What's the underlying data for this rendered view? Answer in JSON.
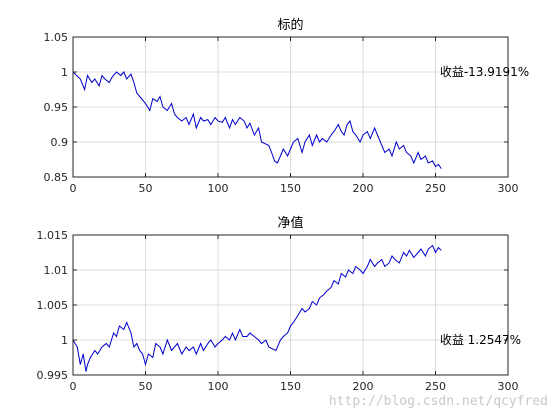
{
  "colors": {
    "series": "#0000cd",
    "grid": "#dcdcdc",
    "axis": "#262626"
  },
  "watermark": "http://blog.csdn.net/qcyfred",
  "chart_data": [
    {
      "type": "line",
      "title": "标的",
      "annotation": "收益-13.9191%",
      "annotation_pos": {
        "x": 253,
        "y": 1.0
      },
      "xlim": [
        0,
        300
      ],
      "ylim": [
        0.85,
        1.05
      ],
      "xticks": [
        0,
        50,
        100,
        150,
        200,
        250,
        300
      ],
      "yticks": [
        0.85,
        0.9,
        0.95,
        1,
        1.05
      ],
      "xtick_labels": [
        "0",
        "50",
        "100",
        "150",
        "200",
        "250",
        "300"
      ],
      "ytick_labels": [
        "0.85",
        "0.9",
        "0.95",
        "1",
        "1.05"
      ],
      "grid": true,
      "series": [
        {
          "x": [
            0,
            5,
            8,
            10,
            13,
            15,
            18,
            20,
            22,
            25,
            27,
            30,
            33,
            35,
            37,
            40,
            42,
            44,
            46,
            48,
            50,
            53,
            55,
            58,
            60,
            62,
            65,
            68,
            70,
            72,
            75,
            78,
            80,
            83,
            85,
            88,
            90,
            93,
            95,
            98,
            100,
            103,
            105,
            108,
            110,
            112,
            115,
            118,
            120,
            122,
            125,
            128,
            130,
            133,
            135,
            137,
            139,
            141,
            143,
            145,
            148,
            150,
            152,
            155,
            158,
            160,
            163,
            165,
            168,
            170,
            172,
            175,
            178,
            180,
            183,
            185,
            187,
            189,
            191,
            193,
            195,
            198,
            200,
            203,
            205,
            208,
            210,
            212,
            215,
            218,
            220,
            223,
            225,
            228,
            230,
            233,
            235,
            238,
            240,
            243,
            245,
            248,
            250,
            252,
            254
          ],
          "y": [
            1.0,
            0.99,
            0.975,
            0.995,
            0.985,
            0.99,
            0.98,
            0.995,
            0.99,
            0.985,
            0.993,
            1.0,
            0.995,
            1.0,
            0.99,
            0.997,
            0.985,
            0.97,
            0.965,
            0.96,
            0.955,
            0.945,
            0.962,
            0.958,
            0.965,
            0.95,
            0.945,
            0.955,
            0.94,
            0.935,
            0.93,
            0.935,
            0.925,
            0.94,
            0.92,
            0.935,
            0.93,
            0.932,
            0.925,
            0.935,
            0.93,
            0.928,
            0.935,
            0.92,
            0.932,
            0.925,
            0.935,
            0.93,
            0.92,
            0.927,
            0.91,
            0.92,
            0.9,
            0.897,
            0.895,
            0.885,
            0.873,
            0.87,
            0.88,
            0.89,
            0.88,
            0.89,
            0.9,
            0.905,
            0.885,
            0.9,
            0.91,
            0.895,
            0.91,
            0.9,
            0.905,
            0.9,
            0.91,
            0.915,
            0.925,
            0.915,
            0.91,
            0.925,
            0.93,
            0.915,
            0.91,
            0.9,
            0.91,
            0.915,
            0.905,
            0.92,
            0.91,
            0.9,
            0.885,
            0.89,
            0.88,
            0.9,
            0.89,
            0.895,
            0.885,
            0.88,
            0.87,
            0.885,
            0.875,
            0.88,
            0.87,
            0.873,
            0.865,
            0.868,
            0.862
          ]
        }
      ]
    },
    {
      "type": "line",
      "title": "净值",
      "annotation": "收益 1.2547%",
      "annotation_pos": {
        "x": 253,
        "y": 1.0
      },
      "xlim": [
        0,
        300
      ],
      "ylim": [
        0.995,
        1.015
      ],
      "xticks": [
        0,
        50,
        100,
        150,
        200,
        250,
        300
      ],
      "yticks": [
        0.995,
        1,
        1.005,
        1.01,
        1.015
      ],
      "xtick_labels": [
        "0",
        "50",
        "100",
        "150",
        "200",
        "250",
        "300"
      ],
      "ytick_labels": [
        "0.995",
        "1",
        "1.005",
        "1.01",
        "1.015"
      ],
      "grid": true,
      "series": [
        {
          "x": [
            0,
            3,
            5,
            7,
            9,
            10,
            12,
            15,
            17,
            20,
            23,
            25,
            28,
            30,
            32,
            35,
            37,
            40,
            42,
            44,
            46,
            48,
            50,
            52,
            55,
            57,
            60,
            62,
            65,
            68,
            70,
            72,
            75,
            78,
            80,
            83,
            85,
            88,
            90,
            93,
            95,
            98,
            100,
            103,
            105,
            108,
            110,
            112,
            115,
            117,
            120,
            122,
            125,
            128,
            130,
            133,
            135,
            137,
            140,
            143,
            145,
            148,
            150,
            152,
            155,
            158,
            160,
            163,
            165,
            168,
            170,
            173,
            175,
            178,
            180,
            183,
            185,
            188,
            190,
            193,
            195,
            198,
            200,
            203,
            205,
            208,
            210,
            213,
            215,
            218,
            220,
            222,
            225,
            228,
            230,
            232,
            235,
            238,
            240,
            243,
            245,
            248,
            250,
            252,
            254
          ],
          "y": [
            1.0,
            0.999,
            0.9965,
            0.998,
            0.9955,
            0.9965,
            0.9975,
            0.9985,
            0.998,
            0.999,
            0.9995,
            0.999,
            1.001,
            1.0005,
            1.002,
            1.0015,
            1.0025,
            1.001,
            0.999,
            0.9995,
            0.9985,
            0.998,
            0.9965,
            0.998,
            0.9975,
            0.9995,
            0.999,
            0.998,
            1.0,
            0.9985,
            0.999,
            0.9995,
            0.998,
            0.999,
            0.9985,
            0.999,
            0.998,
            0.9995,
            0.9985,
            0.9995,
            1.0,
            0.999,
            0.9995,
            1.0,
            1.0005,
            1.0,
            1.001,
            1.0,
            1.0015,
            1.0005,
            1.0005,
            1.001,
            1.0005,
            1.0,
            0.9995,
            1.0,
            0.999,
            0.9988,
            0.9985,
            1.0,
            1.0005,
            1.001,
            1.002,
            1.0025,
            1.0035,
            1.0045,
            1.004,
            1.0045,
            1.0055,
            1.005,
            1.006,
            1.0065,
            1.007,
            1.0075,
            1.0085,
            1.008,
            1.0095,
            1.009,
            1.01,
            1.0095,
            1.0105,
            1.01,
            1.0095,
            1.0105,
            1.0115,
            1.0105,
            1.011,
            1.0115,
            1.0105,
            1.011,
            1.012,
            1.0115,
            1.011,
            1.0125,
            1.012,
            1.0128,
            1.0118,
            1.0125,
            1.013,
            1.012,
            1.013,
            1.0135,
            1.0125,
            1.0132,
            1.0128
          ]
        }
      ]
    }
  ]
}
